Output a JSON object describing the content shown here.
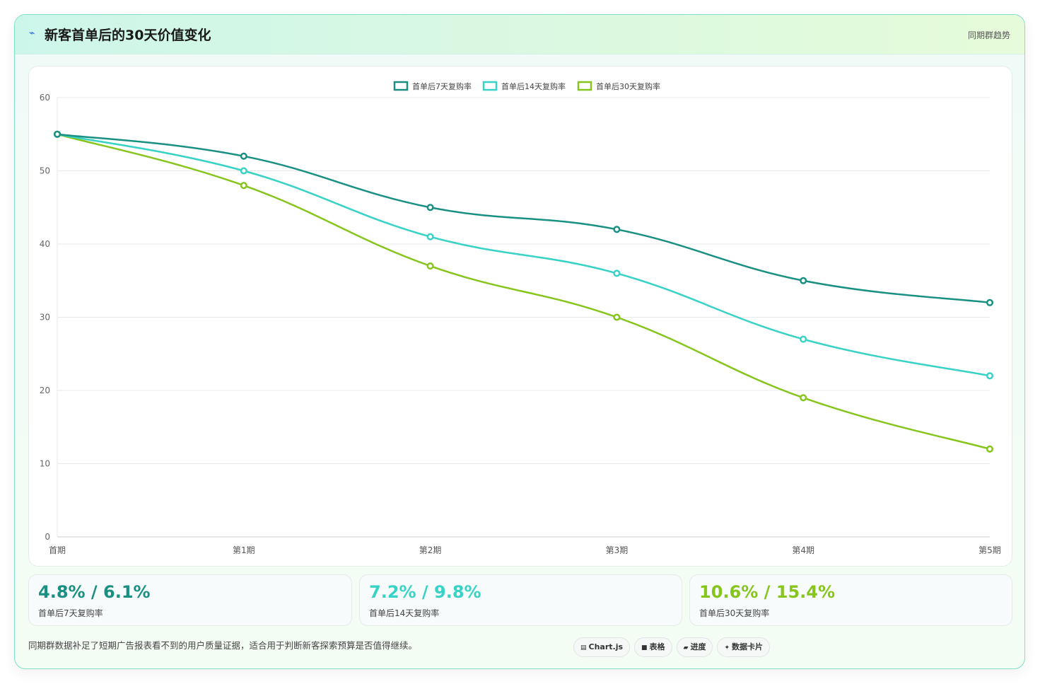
{
  "header": {
    "icon": "pulse-icon",
    "title": "新客首单后的30天价值变化",
    "tag": "同期群趋势"
  },
  "colors": {
    "series7": "#1a9083",
    "series14": "#38d2c6",
    "series30": "#86c51c"
  },
  "chart_data": {
    "type": "line",
    "categories": [
      "首期",
      "第1期",
      "第2期",
      "第3期",
      "第4期",
      "第5期"
    ],
    "series": [
      {
        "name": "首单后7天复购率",
        "values": [
          55,
          52,
          45,
          42,
          35,
          32
        ],
        "color": "#1a9083"
      },
      {
        "name": "首单后14天复购率",
        "values": [
          55,
          50,
          41,
          36,
          27,
          22
        ],
        "color": "#38d2c6"
      },
      {
        "name": "首单后30天复购率",
        "values": [
          55,
          48,
          37,
          30,
          19,
          12
        ],
        "color": "#86c51c"
      }
    ],
    "ylim": [
      0,
      60
    ],
    "yticks": [
      0,
      10,
      20,
      30,
      40,
      50,
      60
    ],
    "grid": true,
    "legend": "top-center"
  },
  "stats": [
    {
      "value": "4.8% / 6.1%",
      "label": "首单后7天复购率",
      "color": "#1a9083"
    },
    {
      "value": "7.2% / 9.8%",
      "label": "首单后14天复购率",
      "color": "#38d2c6"
    },
    {
      "value": "10.6% / 15.4%",
      "label": "首单后30天复购率",
      "color": "#86c51c"
    }
  ],
  "footnote": "同期群数据补足了短期广告报表看不到的用户质量证据，适合用于判断新客探索预算是否值得继续。",
  "pills": [
    {
      "icon": "chart-icon",
      "glyph": "▤",
      "label": "Chart.js"
    },
    {
      "icon": "table-icon",
      "glyph": "■",
      "label": "表格"
    },
    {
      "icon": "progress-icon",
      "glyph": "▰",
      "label": "进度"
    },
    {
      "icon": "card-icon",
      "glyph": "✦",
      "label": "数据卡片"
    }
  ]
}
